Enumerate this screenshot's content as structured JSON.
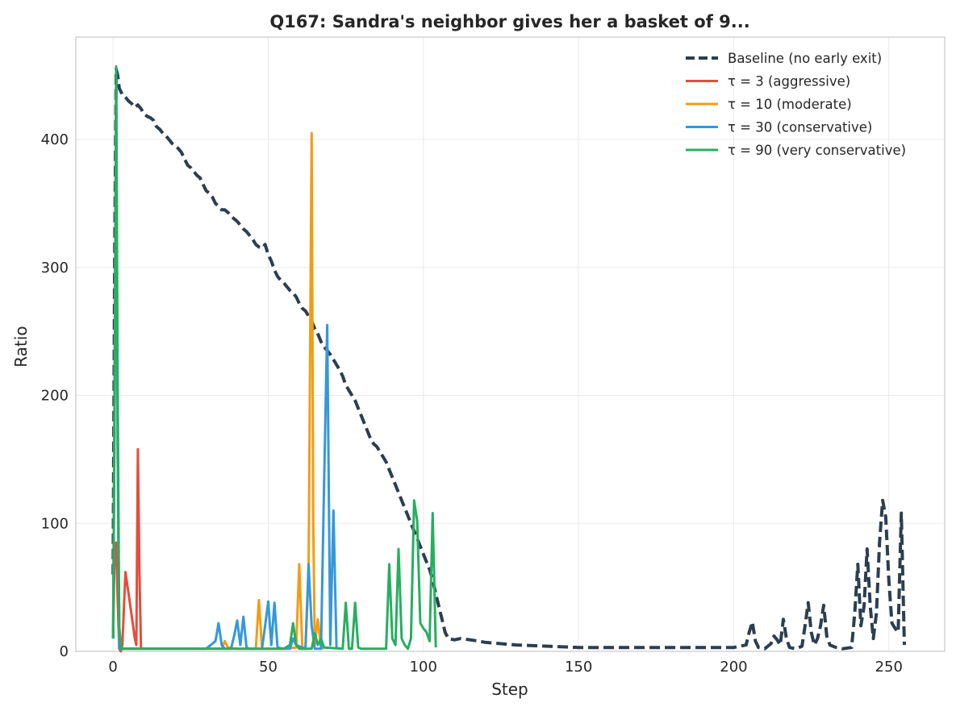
{
  "chart_data": {
    "type": "line",
    "title": "Q167: Sandra's neighbor gives her a basket of 9...",
    "xlabel": "Step",
    "ylabel": "Ratio",
    "xlim": [
      -12,
      268
    ],
    "ylim": [
      0,
      480
    ],
    "xticks": [
      0,
      50,
      100,
      150,
      200,
      250
    ],
    "yticks": [
      0,
      100,
      200,
      300,
      400
    ],
    "grid": true,
    "legend_position": "top-right",
    "series": [
      {
        "name": "Baseline (no early exit)",
        "color": "#2c3e50",
        "dashed": true,
        "points": [
          [
            0,
            60
          ],
          [
            0.5,
            300
          ],
          [
            1,
            455
          ],
          [
            1.5,
            450
          ],
          [
            2,
            440
          ],
          [
            3,
            435
          ],
          [
            4,
            433
          ],
          [
            5,
            430
          ],
          [
            6,
            428
          ],
          [
            7,
            425
          ],
          [
            8,
            427
          ],
          [
            9,
            424
          ],
          [
            10,
            420
          ],
          [
            11,
            418
          ],
          [
            12,
            417
          ],
          [
            13,
            415
          ],
          [
            14,
            410
          ],
          [
            15,
            408
          ],
          [
            16,
            405
          ],
          [
            17,
            403
          ],
          [
            18,
            400
          ],
          [
            19,
            397
          ],
          [
            20,
            395
          ],
          [
            21,
            393
          ],
          [
            22,
            390
          ],
          [
            23,
            385
          ],
          [
            24,
            380
          ],
          [
            25,
            378
          ],
          [
            26,
            375
          ],
          [
            27,
            372
          ],
          [
            28,
            370
          ],
          [
            29,
            365
          ],
          [
            30,
            360
          ],
          [
            31,
            358
          ],
          [
            32,
            355
          ],
          [
            33,
            350
          ],
          [
            34,
            348
          ],
          [
            35,
            345
          ],
          [
            36,
            345
          ],
          [
            37,
            343
          ],
          [
            38,
            340
          ],
          [
            39,
            338
          ],
          [
            40,
            336
          ],
          [
            41,
            333
          ],
          [
            42,
            330
          ],
          [
            43,
            328
          ],
          [
            44,
            325
          ],
          [
            45,
            322
          ],
          [
            46,
            318
          ],
          [
            47,
            316
          ],
          [
            48,
            315
          ],
          [
            49,
            318
          ],
          [
            50,
            310
          ],
          [
            51,
            305
          ],
          [
            52,
            298
          ],
          [
            53,
            293
          ],
          [
            54,
            290
          ],
          [
            55,
            288
          ],
          [
            56,
            285
          ],
          [
            57,
            282
          ],
          [
            58,
            280
          ],
          [
            59,
            277
          ],
          [
            60,
            272
          ],
          [
            61,
            268
          ],
          [
            62,
            266
          ],
          [
            63,
            262
          ],
          [
            64,
            258
          ],
          [
            65,
            252
          ],
          [
            66,
            248
          ],
          [
            67,
            242
          ],
          [
            68,
            238
          ],
          [
            69,
            235
          ],
          [
            70,
            232
          ],
          [
            71,
            228
          ],
          [
            72,
            224
          ],
          [
            73,
            220
          ],
          [
            74,
            215
          ],
          [
            75,
            208
          ],
          [
            76,
            204
          ],
          [
            77,
            200
          ],
          [
            78,
            196
          ],
          [
            79,
            190
          ],
          [
            80,
            184
          ],
          [
            81,
            178
          ],
          [
            82,
            172
          ],
          [
            83,
            166
          ],
          [
            84,
            162
          ],
          [
            85,
            160
          ],
          [
            86,
            156
          ],
          [
            87,
            152
          ],
          [
            88,
            148
          ],
          [
            89,
            142
          ],
          [
            90,
            136
          ],
          [
            91,
            130
          ],
          [
            92,
            124
          ],
          [
            93,
            118
          ],
          [
            94,
            112
          ],
          [
            95,
            106
          ],
          [
            96,
            100
          ],
          [
            97,
            94
          ],
          [
            98,
            88
          ],
          [
            99,
            82
          ],
          [
            100,
            76
          ],
          [
            101,
            70
          ],
          [
            102,
            64
          ],
          [
            103,
            56
          ],
          [
            104,
            45
          ],
          [
            105,
            35
          ],
          [
            106,
            25
          ],
          [
            107,
            15
          ],
          [
            108,
            10
          ],
          [
            110,
            9
          ],
          [
            112,
            10
          ],
          [
            115,
            9
          ],
          [
            118,
            8
          ],
          [
            120,
            7
          ],
          [
            125,
            6
          ],
          [
            130,
            5
          ],
          [
            140,
            4
          ],
          [
            150,
            3
          ],
          [
            160,
            3
          ],
          [
            170,
            3
          ],
          [
            180,
            3
          ],
          [
            190,
            3
          ],
          [
            200,
            3
          ],
          [
            204,
            5
          ],
          [
            205,
            15
          ],
          [
            206,
            23
          ],
          [
            207,
            8
          ],
          [
            208,
            3
          ],
          [
            210,
            2
          ],
          [
            212,
            6
          ],
          [
            213,
            12
          ],
          [
            214,
            9
          ],
          [
            215,
            5
          ],
          [
            216,
            25
          ],
          [
            217,
            10
          ],
          [
            218,
            3
          ],
          [
            220,
            2
          ],
          [
            222,
            4
          ],
          [
            223,
            20
          ],
          [
            224,
            38
          ],
          [
            225,
            15
          ],
          [
            226,
            5
          ],
          [
            227,
            10
          ],
          [
            228,
            20
          ],
          [
            229,
            36
          ],
          [
            230,
            12
          ],
          [
            231,
            5
          ],
          [
            233,
            3
          ],
          [
            235,
            2
          ],
          [
            238,
            3
          ],
          [
            239,
            30
          ],
          [
            240,
            68
          ],
          [
            241,
            20
          ],
          [
            242,
            35
          ],
          [
            243,
            80
          ],
          [
            244,
            35
          ],
          [
            245,
            10
          ],
          [
            246,
            30
          ],
          [
            247,
            85
          ],
          [
            248,
            118
          ],
          [
            249,
            105
          ],
          [
            250,
            55
          ],
          [
            251,
            22
          ],
          [
            252,
            18
          ],
          [
            253,
            15
          ],
          [
            254,
            108
          ],
          [
            255,
            5
          ]
        ]
      },
      {
        "name": "τ = 3 (aggressive)",
        "color": "#e74c3c",
        "dashed": false,
        "points": [
          [
            0,
            10
          ],
          [
            0.5,
            80
          ],
          [
            1,
            85
          ],
          [
            1.5,
            40
          ],
          [
            2,
            2
          ],
          [
            2.5,
            0
          ],
          [
            3,
            5
          ],
          [
            4,
            62
          ],
          [
            5,
            45
          ],
          [
            6,
            28
          ],
          [
            7,
            10
          ],
          [
            7.5,
            5
          ],
          [
            8,
            158
          ],
          [
            8.5,
            60
          ],
          [
            9,
            2
          ],
          [
            9.5,
            2
          ]
        ]
      },
      {
        "name": "τ = 10 (moderate)",
        "color": "#f39c12",
        "dashed": false,
        "points": [
          [
            0,
            10
          ],
          [
            0.5,
            200
          ],
          [
            1,
            440
          ],
          [
            1.5,
            150
          ],
          [
            2,
            20
          ],
          [
            2.5,
            2
          ],
          [
            5,
            2
          ],
          [
            10,
            2
          ],
          [
            20,
            2
          ],
          [
            30,
            2
          ],
          [
            35,
            2
          ],
          [
            36,
            8
          ],
          [
            37,
            3
          ],
          [
            40,
            2
          ],
          [
            46,
            2
          ],
          [
            47,
            40
          ],
          [
            48,
            2
          ],
          [
            55,
            2
          ],
          [
            59,
            3
          ],
          [
            60,
            68
          ],
          [
            61,
            2
          ],
          [
            62,
            2
          ],
          [
            63,
            60
          ],
          [
            64,
            405
          ],
          [
            64.5,
            100
          ],
          [
            65,
            5
          ],
          [
            66,
            25
          ],
          [
            67,
            3
          ],
          [
            68,
            2
          ]
        ]
      },
      {
        "name": "τ = 30 (conservative)",
        "color": "#3498db",
        "dashed": false,
        "points": [
          [
            0,
            10
          ],
          [
            0.5,
            200
          ],
          [
            1,
            450
          ],
          [
            1.5,
            150
          ],
          [
            2,
            2
          ],
          [
            10,
            2
          ],
          [
            20,
            2
          ],
          [
            30,
            2
          ],
          [
            33,
            8
          ],
          [
            34,
            22
          ],
          [
            35,
            5
          ],
          [
            36,
            2
          ],
          [
            38,
            2
          ],
          [
            39,
            12
          ],
          [
            40,
            24
          ],
          [
            41,
            5
          ],
          [
            42,
            27
          ],
          [
            43,
            3
          ],
          [
            44,
            2
          ],
          [
            48,
            2
          ],
          [
            49,
            20
          ],
          [
            50,
            39
          ],
          [
            51,
            5
          ],
          [
            52,
            38
          ],
          [
            53,
            3
          ],
          [
            55,
            2
          ],
          [
            57,
            2
          ],
          [
            58,
            10
          ],
          [
            59,
            5
          ],
          [
            62,
            2
          ],
          [
            63,
            68
          ],
          [
            64,
            20
          ],
          [
            65,
            2
          ],
          [
            67,
            2
          ],
          [
            68,
            130
          ],
          [
            69,
            255
          ],
          [
            70,
            5
          ],
          [
            71,
            110
          ],
          [
            72,
            3
          ],
          [
            73,
            2
          ]
        ]
      },
      {
        "name": "τ = 90 (very conservative)",
        "color": "#27ae60",
        "dashed": false,
        "points": [
          [
            0,
            10
          ],
          [
            0.5,
            200
          ],
          [
            1,
            457
          ],
          [
            1.5,
            200
          ],
          [
            2,
            20
          ],
          [
            2.5,
            2
          ],
          [
            10,
            2
          ],
          [
            20,
            2
          ],
          [
            30,
            2
          ],
          [
            40,
            2
          ],
          [
            50,
            2
          ],
          [
            55,
            2
          ],
          [
            57,
            5
          ],
          [
            58,
            22
          ],
          [
            59,
            5
          ],
          [
            60,
            2
          ],
          [
            64,
            2
          ],
          [
            65,
            14
          ],
          [
            66,
            5
          ],
          [
            67,
            10
          ],
          [
            68,
            3
          ],
          [
            74,
            2
          ],
          [
            75,
            38
          ],
          [
            76,
            2
          ],
          [
            77,
            2
          ],
          [
            78,
            38
          ],
          [
            79,
            3
          ],
          [
            80,
            2
          ],
          [
            82,
            2
          ],
          [
            88,
            2
          ],
          [
            89,
            68
          ],
          [
            90,
            10
          ],
          [
            91,
            5
          ],
          [
            92,
            80
          ],
          [
            93,
            10
          ],
          [
            94,
            5
          ],
          [
            95,
            2
          ],
          [
            96,
            10
          ],
          [
            97,
            118
          ],
          [
            98,
            102
          ],
          [
            99,
            22
          ],
          [
            100,
            18
          ],
          [
            101,
            15
          ],
          [
            102,
            8
          ],
          [
            103,
            108
          ],
          [
            104,
            3
          ]
        ]
      }
    ]
  }
}
